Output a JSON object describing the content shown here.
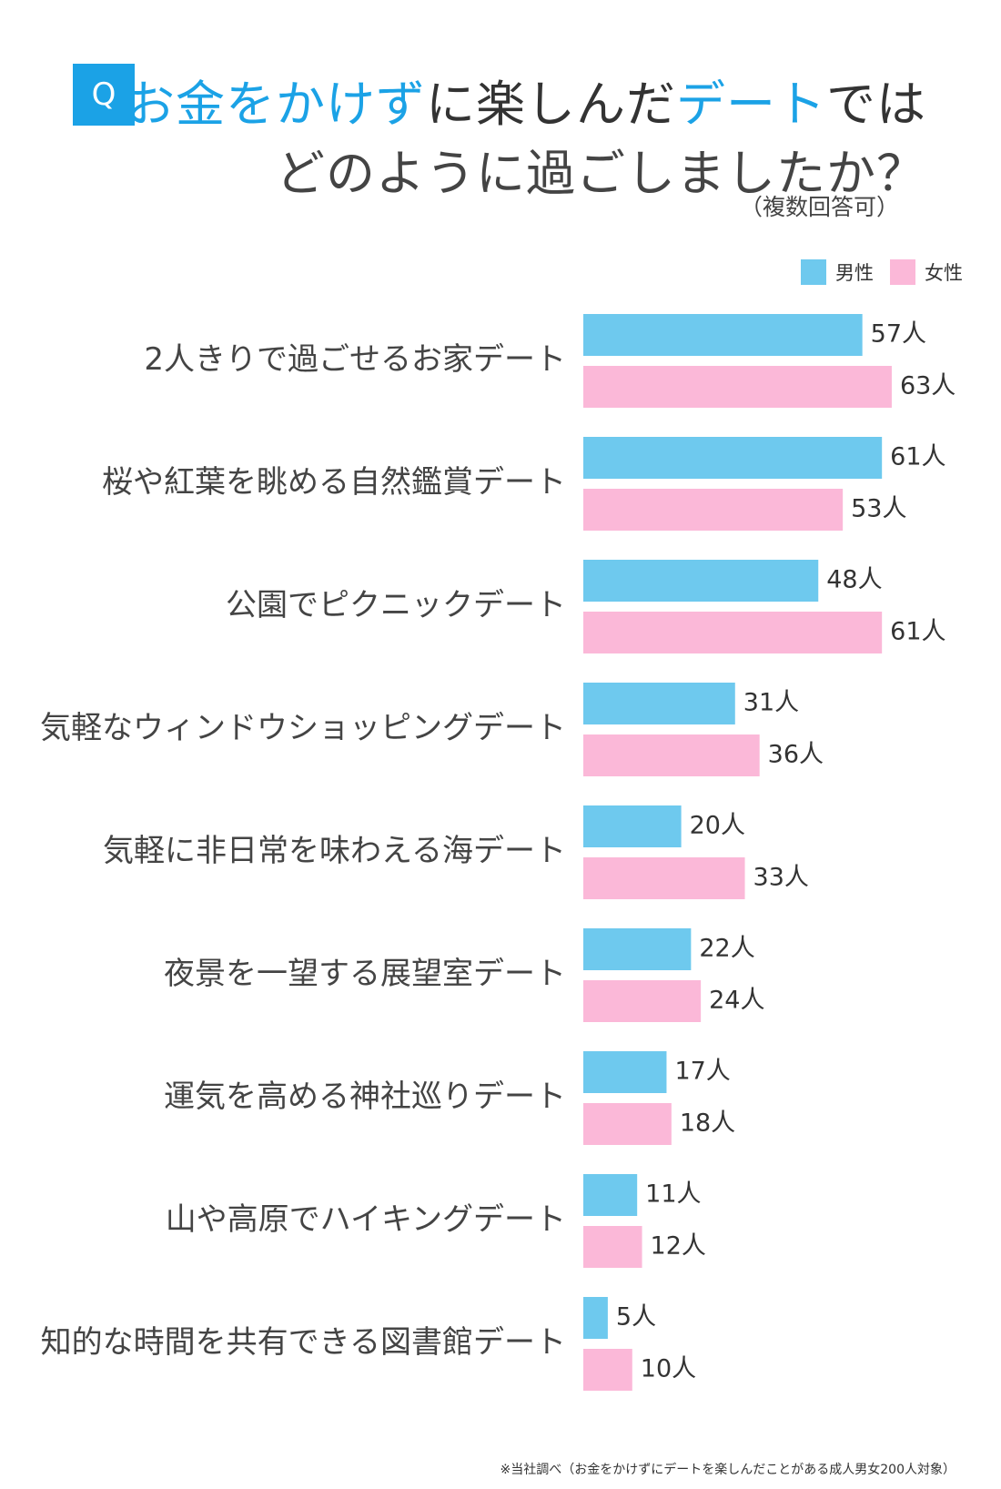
{
  "header": {
    "badge": "Q",
    "title_line1_parts": [
      {
        "text": "お金をかけず",
        "accent": true
      },
      {
        "text": "に楽しんだ",
        "accent": false
      },
      {
        "text": "デート",
        "accent": true
      },
      {
        "text": "では",
        "accent": false
      }
    ],
    "title_line2": "どのように過ごしましたか？",
    "note": "（複数回答可）"
  },
  "colors": {
    "accent": "#1ba2e6",
    "male": "#6ec9ee",
    "female": "#fbb8d8",
    "text": "#333333"
  },
  "legend": {
    "male": "男性",
    "female": "女性"
  },
  "chart_data": {
    "type": "bar",
    "orientation": "horizontal",
    "categories": [
      "2人きりで過ごせるお家デート",
      "桜や紅葉を眺める自然鑑賞デート",
      "公園でピクニックデート",
      "気軽なウィンドウショッピングデート",
      "気軽に非日常を味わえる海デート",
      "夜景を一望する展望室デート",
      "運気を高める神社巡りデート",
      "山や高原でハイキングデート",
      "知的な時間を共有できる図書館デート"
    ],
    "series": [
      {
        "name": "男性",
        "values": [
          57,
          61,
          48,
          31,
          20,
          22,
          17,
          11,
          5
        ]
      },
      {
        "name": "女性",
        "values": [
          63,
          53,
          61,
          36,
          33,
          24,
          18,
          12,
          10
        ]
      }
    ],
    "value_suffix": "人",
    "legend_position": "top-right",
    "grid": false
  },
  "footnote": "※当社調べ（お金をかけずにデートを楽しんだことがある成人男女200人対象）"
}
